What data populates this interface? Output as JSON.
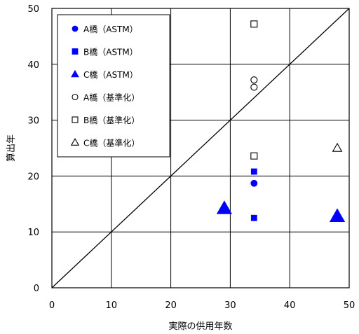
{
  "chart_data": {
    "type": "scatter",
    "xlabel": "実際の供用年数",
    "ylabel": "算出年",
    "xlim": [
      0,
      50
    ],
    "ylim": [
      0,
      50
    ],
    "xticks": [
      "0",
      "10",
      "20",
      "30",
      "40",
      "50"
    ],
    "yticks": [
      "0",
      "10",
      "20",
      "30",
      "40",
      "50"
    ],
    "grid": true,
    "legend_position": "top-left",
    "reference_line": {
      "x": [
        0,
        50
      ],
      "y": [
        0,
        50
      ]
    },
    "series": [
      {
        "name": "A橋（ASTM）",
        "marker": "circle",
        "filled": true,
        "color": "#0000ff",
        "points": [
          {
            "x": 34,
            "y": 18.7
          }
        ]
      },
      {
        "name": "B橋（ASTM）",
        "marker": "square",
        "filled": true,
        "color": "#0000ff",
        "points": [
          {
            "x": 34,
            "y": 20.8
          },
          {
            "x": 34,
            "y": 12.5
          }
        ]
      },
      {
        "name": "C橋（ASTM）",
        "marker": "triangle",
        "filled": true,
        "color": "#0000ff",
        "points": [
          {
            "x": 29,
            "y": 14.2
          },
          {
            "x": 48,
            "y": 12.8
          }
        ]
      },
      {
        "name": "A橋（基準化）",
        "marker": "circle",
        "filled": false,
        "color": "#000000",
        "points": [
          {
            "x": 34,
            "y": 37.2
          },
          {
            "x": 34,
            "y": 35.9
          }
        ]
      },
      {
        "name": "B橋（基準化）",
        "marker": "square",
        "filled": false,
        "color": "#000000",
        "points": [
          {
            "x": 34,
            "y": 47.2
          },
          {
            "x": 34,
            "y": 23.6
          }
        ]
      },
      {
        "name": "C橋（基準化）",
        "marker": "triangle",
        "filled": false,
        "color": "#000000",
        "points": [
          {
            "x": 48,
            "y": 25.0
          }
        ]
      }
    ]
  }
}
